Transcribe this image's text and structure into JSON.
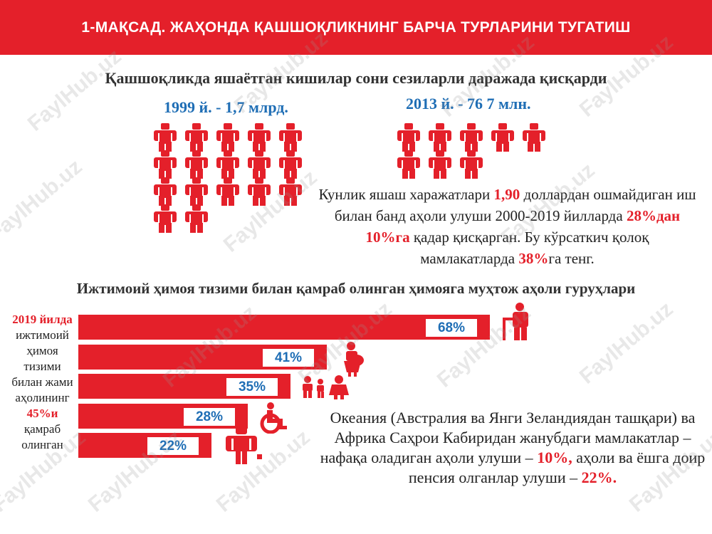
{
  "banner": {
    "title": "1-МАҚСАД. ЖАҲОНДА ҚАШШОҚЛИКНИНГ БАРЧА ТУРЛАРИНИ ТУГАТИШ"
  },
  "poverty": {
    "heading": "Қашшоқликда яшаётган кишилар сони сезиларли даражада қисқарди",
    "year_1999": "1999 й. - 1,7 млрд.",
    "year_2013": "2013 й. - 76 7 млн.",
    "icons_1999": 17,
    "icons_2013": 8
  },
  "workers_stat": {
    "p1": "Кунлик яшаш харажатлари ",
    "v1": "1,90",
    "p2": " доллардан ошмайдиган иш билан банд аҳоли улуши 2000-2019 йилларда ",
    "v2": "28%дан 10%га",
    "p3": " қадар қисқарган. Бу кўрсаткич қолоқ мамлакатларда ",
    "v3": "38%",
    "p4": "га тенг."
  },
  "protection": {
    "heading": "Ижтимоий ҳимоя тизими билан қамраб олинган ҳимояга муҳтож аҳоли гуруҳлари",
    "side_year": "2019 йилда",
    "side_p1": "ижтимоий ҳимоя тизими билан жами аҳолининг ",
    "side_value": "45%и",
    "side_p2": " қамраб олинган"
  },
  "chart_data": {
    "type": "bar",
    "orientation": "horizontal",
    "values": [
      68,
      41,
      35,
      28,
      22
    ],
    "labels": [
      "68%",
      "41%",
      "35%",
      "28%",
      "22%"
    ],
    "icons": [
      "elderly-person-icon",
      "pregnant-woman-icon",
      "children-icon",
      "wheelchair-icon",
      "unemployed-person-icon"
    ],
    "bar_color": "#e4202a",
    "label_color": "#1f6eb5"
  },
  "oceania": {
    "p1": "Океания (Австралия ва Янги Зеландиядан ташқари) ва Африка Саҳрои Кабиридан жанубдаги мамлакатлар – нафақа оладиган аҳоли улуши – ",
    "v1": "10%,",
    "p2": " аҳоли ва ёшга доир пенсия олганлар улуши – ",
    "v2": "22%."
  },
  "watermark": "FaylHub.uz",
  "colors": {
    "red": "#e4202a",
    "blue": "#1f6eb5",
    "text": "#222222"
  }
}
